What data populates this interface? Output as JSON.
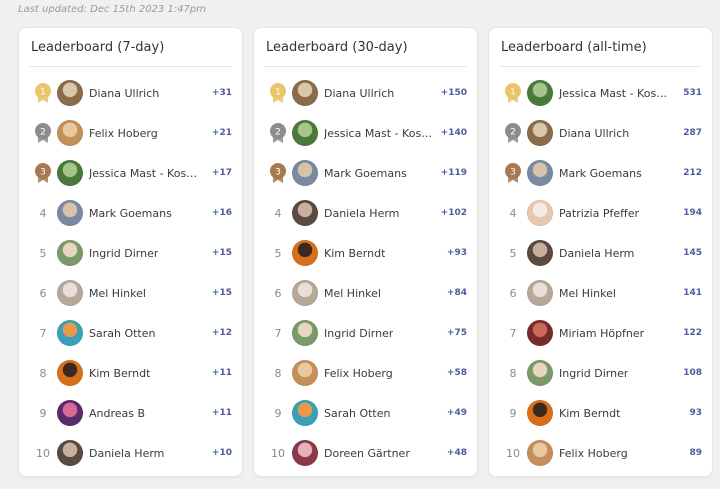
{
  "last_updated": "Last updated: Dec 15th 2023 1:47pm",
  "colors": {
    "gold": "#e9c46a",
    "silver": "#8c8c8c",
    "bronze": "#a8794f",
    "points": "#4a5d9c"
  },
  "boards": [
    {
      "title": "Leaderboard (7-day)",
      "rows": [
        {
          "rank": "1",
          "name": "Diana Ullrich",
          "points": "+31",
          "medal": "gold",
          "avatar": [
            "#8a6b4a",
            "#d9c7a8"
          ]
        },
        {
          "rank": "2",
          "name": "Felix Hoberg",
          "points": "+21",
          "medal": "silver",
          "avatar": [
            "#c58f5a",
            "#e8c9a0"
          ]
        },
        {
          "rank": "3",
          "name": "Jessica Mast - Kos…",
          "points": "+17",
          "medal": "bronze",
          "avatar": [
            "#4a7a3a",
            "#a8c48a"
          ]
        },
        {
          "rank": "4",
          "name": "Mark Goemans",
          "points": "+16",
          "medal": "",
          "avatar": [
            "#7a8aa0",
            "#d8c2aa"
          ]
        },
        {
          "rank": "5",
          "name": "Ingrid Dirner",
          "points": "+15",
          "medal": "",
          "avatar": [
            "#7a9a6a",
            "#e6d6c0"
          ]
        },
        {
          "rank": "6",
          "name": "Mel Hinkel",
          "points": "+15",
          "medal": "",
          "avatar": [
            "#b8a89a",
            "#e8e0d8"
          ]
        },
        {
          "rank": "7",
          "name": "Sarah Otten",
          "points": "+12",
          "medal": "",
          "avatar": [
            "#3aa0b8",
            "#e89a4a"
          ]
        },
        {
          "rank": "8",
          "name": "Kim Berndt",
          "points": "+11",
          "medal": "",
          "avatar": [
            "#d8701a",
            "#3a2a20"
          ]
        },
        {
          "rank": "9",
          "name": "Andreas B",
          "points": "+11",
          "medal": "",
          "avatar": [
            "#5a2a6a",
            "#d86a9a"
          ]
        },
        {
          "rank": "10",
          "name": "Daniela Herm",
          "points": "+10",
          "medal": "",
          "avatar": [
            "#5a4a40",
            "#c8b0a0"
          ]
        }
      ]
    },
    {
      "title": "Leaderboard (30-day)",
      "rows": [
        {
          "rank": "1",
          "name": "Diana Ullrich",
          "points": "+150",
          "medal": "gold",
          "avatar": [
            "#8a6b4a",
            "#d9c7a8"
          ]
        },
        {
          "rank": "2",
          "name": "Jessica Mast - Kos…",
          "points": "+140",
          "medal": "silver",
          "avatar": [
            "#4a7a3a",
            "#a8c48a"
          ]
        },
        {
          "rank": "3",
          "name": "Mark Goemans",
          "points": "+119",
          "medal": "bronze",
          "avatar": [
            "#7a8aa0",
            "#d8c2aa"
          ]
        },
        {
          "rank": "4",
          "name": "Daniela Herm",
          "points": "+102",
          "medal": "",
          "avatar": [
            "#5a4a40",
            "#c8b0a0"
          ]
        },
        {
          "rank": "5",
          "name": "Kim Berndt",
          "points": "+93",
          "medal": "",
          "avatar": [
            "#d8701a",
            "#3a2a20"
          ]
        },
        {
          "rank": "6",
          "name": "Mel Hinkel",
          "points": "+84",
          "medal": "",
          "avatar": [
            "#b8a89a",
            "#e8e0d8"
          ]
        },
        {
          "rank": "7",
          "name": "Ingrid Dirner",
          "points": "+75",
          "medal": "",
          "avatar": [
            "#7a9a6a",
            "#e6d6c0"
          ]
        },
        {
          "rank": "8",
          "name": "Felix Hoberg",
          "points": "+58",
          "medal": "",
          "avatar": [
            "#c58f5a",
            "#e8c9a0"
          ]
        },
        {
          "rank": "9",
          "name": "Sarah Otten",
          "points": "+49",
          "medal": "",
          "avatar": [
            "#3aa0b8",
            "#e89a4a"
          ]
        },
        {
          "rank": "10",
          "name": "Doreen Gärtner",
          "points": "+48",
          "medal": "",
          "avatar": [
            "#8a3a4a",
            "#e8b0b8"
          ]
        }
      ]
    },
    {
      "title": "Leaderboard (all-time)",
      "rows": [
        {
          "rank": "1",
          "name": "Jessica Mast - Kos…",
          "points": "531",
          "medal": "gold",
          "avatar": [
            "#4a7a3a",
            "#a8c48a"
          ]
        },
        {
          "rank": "2",
          "name": "Diana Ullrich",
          "points": "287",
          "medal": "silver",
          "avatar": [
            "#8a6b4a",
            "#d9c7a8"
          ]
        },
        {
          "rank": "3",
          "name": "Mark Goemans",
          "points": "212",
          "medal": "bronze",
          "avatar": [
            "#7a8aa0",
            "#d8c2aa"
          ]
        },
        {
          "rank": "4",
          "name": "Patrizia Pfeffer",
          "points": "194",
          "medal": "",
          "avatar": [
            "#e8c8b0",
            "#f4ece4"
          ]
        },
        {
          "rank": "5",
          "name": "Daniela Herm",
          "points": "145",
          "medal": "",
          "avatar": [
            "#5a4a40",
            "#c8b0a0"
          ]
        },
        {
          "rank": "6",
          "name": "Mel Hinkel",
          "points": "141",
          "medal": "",
          "avatar": [
            "#b8a89a",
            "#e8e0d8"
          ]
        },
        {
          "rank": "7",
          "name": "Miriam Höpfner",
          "points": "122",
          "medal": "",
          "avatar": [
            "#7a2a2a",
            "#c86a5a"
          ]
        },
        {
          "rank": "8",
          "name": "Ingrid Dirner",
          "points": "108",
          "medal": "",
          "avatar": [
            "#7a9a6a",
            "#e6d6c0"
          ]
        },
        {
          "rank": "9",
          "name": "Kim Berndt",
          "points": "93",
          "medal": "",
          "avatar": [
            "#d8701a",
            "#3a2a20"
          ]
        },
        {
          "rank": "10",
          "name": "Felix Hoberg",
          "points": "89",
          "medal": "",
          "avatar": [
            "#c58f5a",
            "#e8c9a0"
          ]
        }
      ]
    }
  ]
}
